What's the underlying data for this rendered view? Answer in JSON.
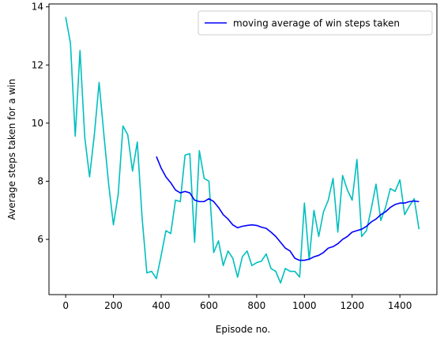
{
  "chart_data": {
    "type": "line",
    "title": "",
    "xlabel": "Episode no.",
    "ylabel": "Average steps taken for a win",
    "xlim": [
      -70,
      1555
    ],
    "ylim": [
      4.1,
      14.1
    ],
    "xticks": [
      0,
      200,
      400,
      600,
      800,
      1000,
      1200,
      1400
    ],
    "yticks": [
      6,
      8,
      10,
      12,
      14
    ],
    "grid": false,
    "legend_position": "top-right",
    "series": [
      {
        "name": "",
        "color": "#00bfbf",
        "x": [
          0,
          20,
          40,
          60,
          80,
          100,
          120,
          140,
          160,
          180,
          200,
          220,
          240,
          260,
          280,
          300,
          320,
          340,
          360,
          380,
          400,
          420,
          440,
          460,
          480,
          500,
          520,
          540,
          560,
          580,
          600,
          620,
          640,
          660,
          680,
          700,
          720,
          740,
          760,
          780,
          800,
          820,
          840,
          860,
          880,
          900,
          920,
          940,
          960,
          980,
          1000,
          1020,
          1040,
          1060,
          1080,
          1100,
          1120,
          1140,
          1160,
          1180,
          1200,
          1220,
          1240,
          1260,
          1280,
          1300,
          1320,
          1340,
          1360,
          1380,
          1400,
          1420,
          1440,
          1460,
          1480
        ],
        "y": [
          13.65,
          12.75,
          9.55,
          12.5,
          9.5,
          8.15,
          9.6,
          11.4,
          9.6,
          7.9,
          6.5,
          7.55,
          9.9,
          9.6,
          8.35,
          9.35,
          6.75,
          4.85,
          4.9,
          4.65,
          5.45,
          6.3,
          6.2,
          7.35,
          7.3,
          8.9,
          8.95,
          5.9,
          9.05,
          8.1,
          8.0,
          5.55,
          5.95,
          5.1,
          5.6,
          5.35,
          4.7,
          5.4,
          5.6,
          5.1,
          5.2,
          5.25,
          5.5,
          5.0,
          4.9,
          4.5,
          5.0,
          4.9,
          4.9,
          4.7,
          7.25,
          5.3,
          7.0,
          6.1,
          6.95,
          7.35,
          8.1,
          6.25,
          8.2,
          7.7,
          7.35,
          8.75,
          6.1,
          6.3,
          7.05,
          7.9,
          6.65,
          7.1,
          7.75,
          7.65,
          8.05,
          6.85,
          7.15,
          7.4,
          6.35
        ]
      },
      {
        "name": "moving average of win steps taken",
        "color": "#0000ff",
        "x": [
          380,
          400,
          420,
          440,
          460,
          480,
          500,
          520,
          540,
          560,
          580,
          600,
          620,
          640,
          660,
          680,
          700,
          720,
          740,
          760,
          780,
          800,
          820,
          840,
          860,
          880,
          900,
          920,
          940,
          960,
          980,
          1000,
          1020,
          1040,
          1060,
          1080,
          1100,
          1120,
          1140,
          1160,
          1180,
          1200,
          1220,
          1240,
          1260,
          1280,
          1300,
          1320,
          1340,
          1360,
          1380,
          1400,
          1420,
          1440,
          1460,
          1480
        ],
        "y": [
          8.85,
          8.45,
          8.15,
          7.95,
          7.7,
          7.6,
          7.65,
          7.6,
          7.35,
          7.3,
          7.3,
          7.4,
          7.3,
          7.1,
          6.85,
          6.7,
          6.5,
          6.4,
          6.45,
          6.48,
          6.5,
          6.48,
          6.42,
          6.38,
          6.25,
          6.1,
          5.9,
          5.7,
          5.6,
          5.35,
          5.28,
          5.28,
          5.32,
          5.4,
          5.45,
          5.55,
          5.7,
          5.75,
          5.85,
          6.0,
          6.1,
          6.25,
          6.3,
          6.35,
          6.45,
          6.6,
          6.7,
          6.85,
          6.95,
          7.1,
          7.2,
          7.25,
          7.25,
          7.3,
          7.32,
          7.3
        ]
      }
    ]
  }
}
